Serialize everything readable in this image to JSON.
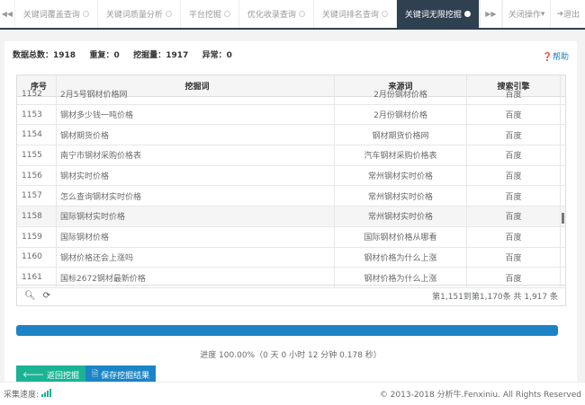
{
  "tabs": [
    {
      "label": "关键词覆盖查询"
    },
    {
      "label": "关键词质量分析"
    },
    {
      "label": "平台挖掘"
    },
    {
      "label": "优化收录查询"
    },
    {
      "label": "关键词排名查询"
    },
    {
      "label": "关键词无限挖掘",
      "active": true
    }
  ],
  "topbar": {
    "nav_left_icon": "double-left-icon",
    "nav_right_icon": "double-right-icon",
    "close_ops": "关闭操作",
    "logout": "退出"
  },
  "stats": {
    "total_label": "数据总数：",
    "total": "1918",
    "dup_label": "重复：",
    "dup": "0",
    "mined_label": "挖掘量：",
    "mined": "1917",
    "err_label": "异常：",
    "err": "0"
  },
  "help": "帮助",
  "table": {
    "headers": [
      "序号",
      "挖掘词",
      "来源词",
      "搜索引擎"
    ],
    "rows": [
      [
        "1152",
        "2月5号钢材价格网",
        "2月份钢材价格",
        "百度"
      ],
      [
        "1153",
        "钢材多少钱一吨价格",
        "2月份钢材价格",
        "百度"
      ],
      [
        "1154",
        "钢材期货价格",
        "钢材期货价格网",
        "百度"
      ],
      [
        "1155",
        "南宁市钢材采购价格表",
        "汽车钢材采购价格表",
        "百度"
      ],
      [
        "1156",
        "钢材实时价格",
        "常州钢材实时价格",
        "百度"
      ],
      [
        "1157",
        "怎么查询钢材实时价格",
        "常州钢材实时价格",
        "百度"
      ],
      [
        "1158",
        "国际钢材实时价格",
        "常州钢材实时价格",
        "百度"
      ],
      [
        "1159",
        "国际钢材价格",
        "国际钢材价格从哪看",
        "百度"
      ],
      [
        "1160",
        "钢材价格还会上涨吗",
        "钢材价格为什么上涨",
        "百度"
      ],
      [
        "1161",
        "国标2672钢材最新价格",
        "钢材价格为什么上涨",
        "百度"
      ]
    ],
    "pagination": "第1,151到第1,170条   共 1,917 条"
  },
  "progress": {
    "percent": 100,
    "text": "进度 100.00%（0 天 0 小时 12 分钟 0.178 秒）",
    "color": "#1c84c6"
  },
  "buttons": {
    "back": "返回挖掘",
    "save": "保存挖掘结果"
  },
  "footer": {
    "speed_label": "采集速度:",
    "copyright": "© 2013-2018 分析牛.Fenxiniu. All Rights Reserved"
  }
}
